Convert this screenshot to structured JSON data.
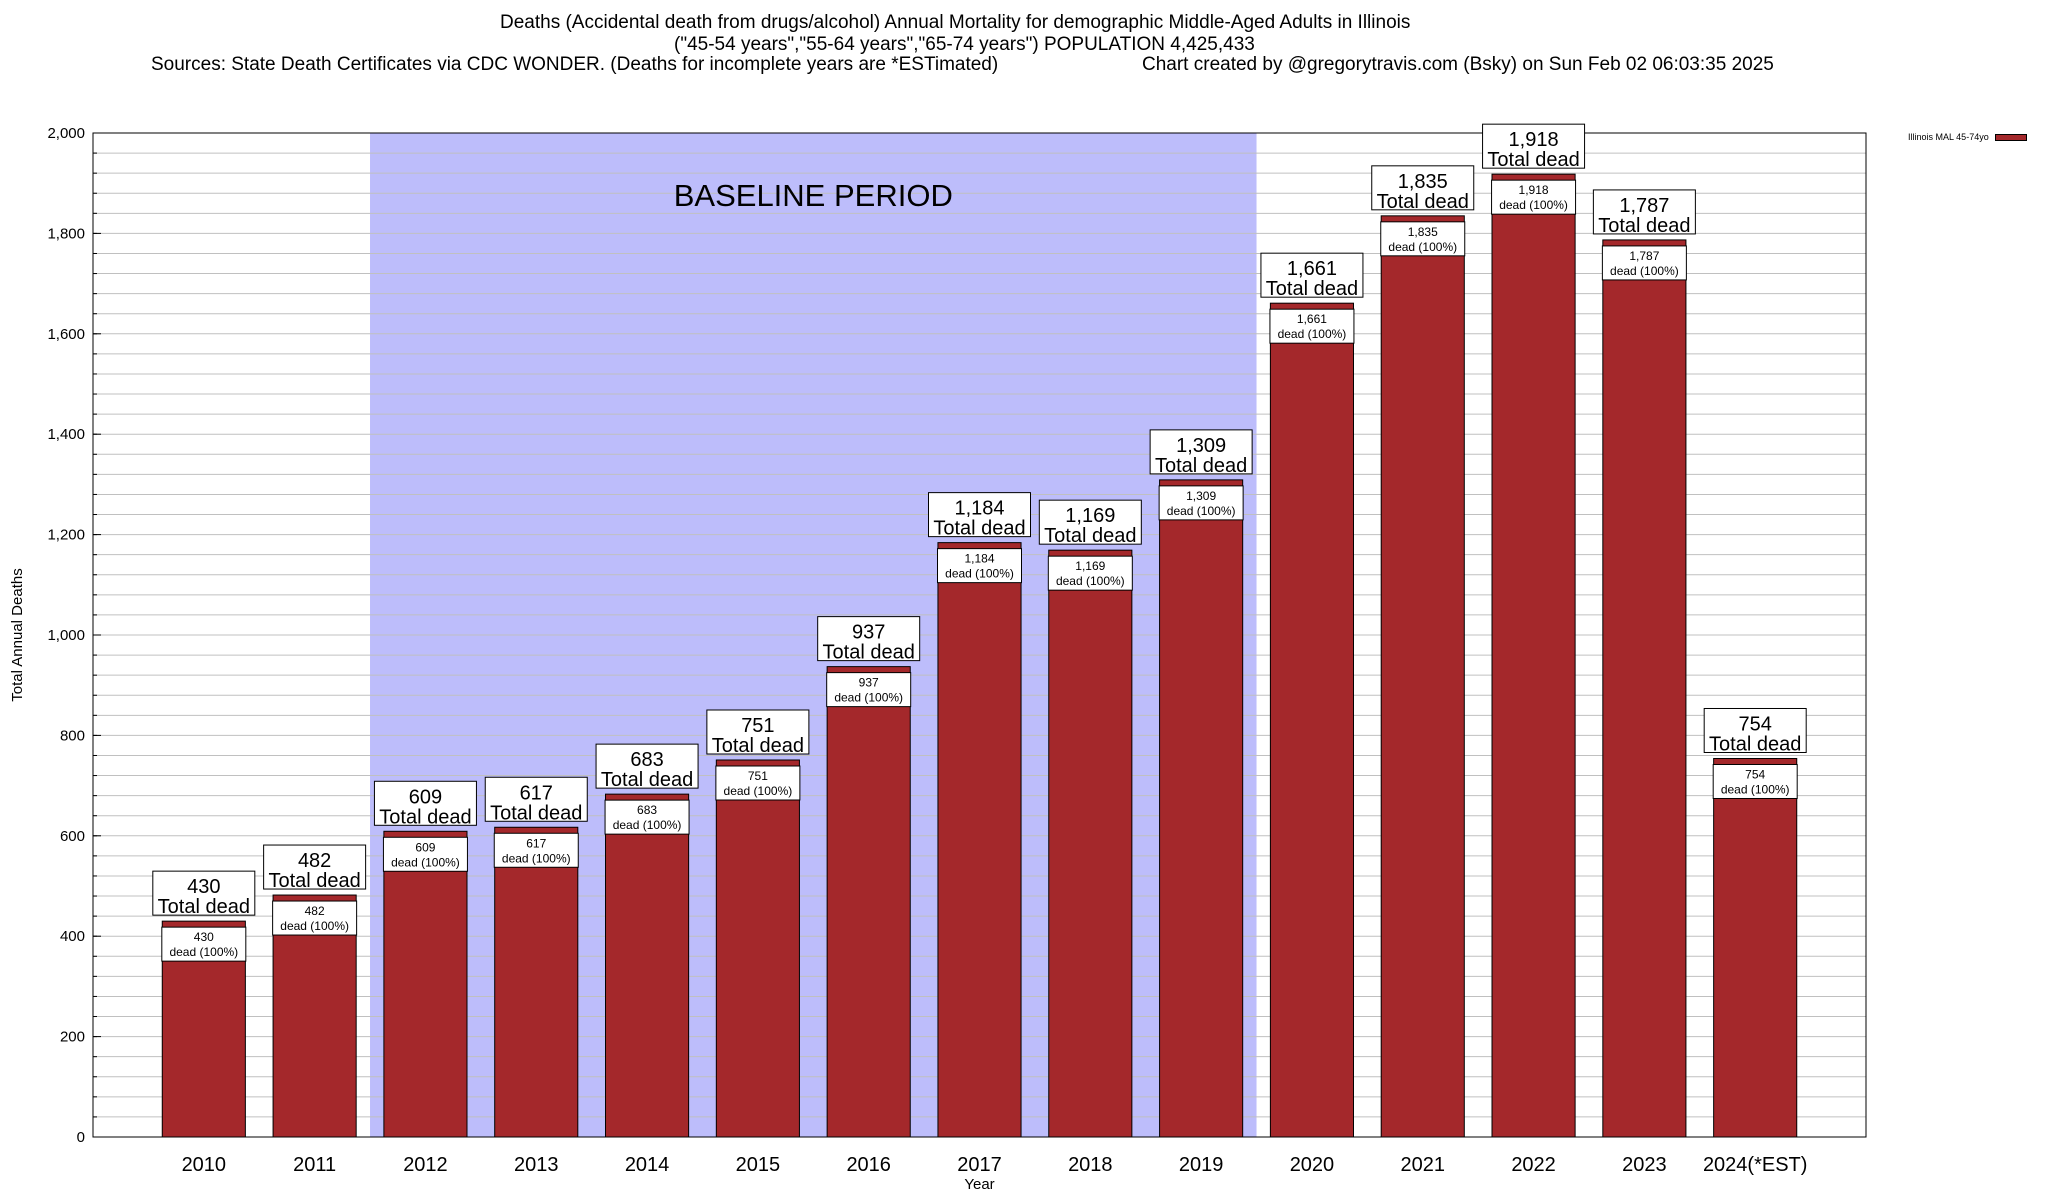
{
  "header": {
    "title_line1": "Deaths (Accidental death from drugs/alcohol) Annual Mortality for demographic Middle-Aged Adults in Illinois",
    "title_line2": "(\"45-54 years\",\"55-64 years\",\"65-74 years\") POPULATION 4,425,433",
    "sources": "Sources: State Death Certificates via CDC WONDER. (Deaths for incomplete years are *ESTimated)",
    "credit": "Chart created by @gregorytravis.com (Bsky) on Sun Feb 02 06:03:35 2025"
  },
  "colors": {
    "bar": "#a4282b",
    "baseline_band": "#bdbdfb",
    "grid": "#c0c0c0"
  },
  "chart_data": {
    "type": "bar",
    "categories": [
      "2010",
      "2011",
      "2012",
      "2013",
      "2014",
      "2015",
      "2016",
      "2017",
      "2018",
      "2019",
      "2020",
      "2021",
      "2022",
      "2023",
      "2024(*EST)"
    ],
    "series": [
      {
        "name": "Illinois MAL 45-74yo",
        "values": [
          430,
          482,
          609,
          617,
          683,
          751,
          937,
          1184,
          1169,
          1309,
          1661,
          1835,
          1918,
          1787,
          754
        ]
      }
    ],
    "value_labels": [
      "430",
      "482",
      "609",
      "617",
      "683",
      "751",
      "937",
      "1,184",
      "1,169",
      "1,309",
      "1,661",
      "1,835",
      "1,918",
      "1,787",
      "754"
    ],
    "top_label_suffix": "Total dead",
    "inner_label_suffix": "dead (100%)",
    "xlabel": "Year",
    "ylabel": "Total Annual Deaths",
    "ylim": [
      0,
      2000
    ],
    "yticks": [
      0,
      200,
      400,
      600,
      800,
      1000,
      1200,
      1400,
      1600,
      1800,
      2000
    ],
    "ytick_labels": [
      "0",
      "200",
      "400",
      "600",
      "800",
      "1,000",
      "1,200",
      "1,400",
      "1,600",
      "1,800",
      "2,000"
    ],
    "minor_grid_step": 40,
    "grid": true,
    "annotation": {
      "text": "BASELINE PERIOD",
      "start_category": "2012",
      "end_category": "2019"
    },
    "legend_position": "top-right"
  }
}
